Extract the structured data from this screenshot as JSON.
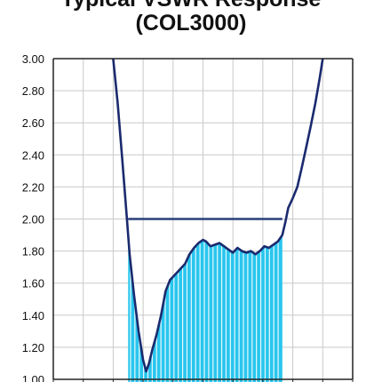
{
  "chart_data": {
    "type": "line",
    "title_lines": [
      "Typical VSWR Response",
      "(COL3000)"
    ],
    "ylim": [
      1.0,
      3.0
    ],
    "y_ticks": [
      "3.00",
      "2.80",
      "2.60",
      "2.40",
      "2.20",
      "2.00",
      "1.80",
      "1.60",
      "1.40",
      "1.20",
      "1.00"
    ],
    "y_tick_values": [
      3.0,
      2.8,
      2.6,
      2.4,
      2.2,
      2.0,
      1.8,
      1.6,
      1.4,
      1.2,
      1.0
    ],
    "xlim": [
      0,
      10
    ],
    "x_grid_count": 10,
    "grid": true,
    "threshold": {
      "value": 2.0,
      "x_start": 2.5,
      "x_end": 7.65
    },
    "fill_range": {
      "x_start": 2.5,
      "x_end": 7.65
    },
    "series": [
      {
        "x": [
          2.0,
          2.15,
          2.3,
          2.45,
          2.55,
          2.7,
          2.85,
          3.0,
          3.1,
          3.2,
          3.3,
          3.45,
          3.6,
          3.75,
          3.9,
          4.0,
          4.1,
          4.25,
          4.4,
          4.55,
          4.7,
          4.85,
          5.0,
          5.1,
          5.25,
          5.4,
          5.55,
          5.7,
          5.85,
          6.0,
          6.15,
          6.3,
          6.45,
          6.6,
          6.75,
          6.9,
          7.05,
          7.2,
          7.35,
          7.5,
          7.65,
          7.75,
          7.85,
          8.0,
          8.15,
          8.3,
          8.45,
          8.6,
          8.75,
          8.9,
          9.0
        ],
        "y": [
          3.0,
          2.72,
          2.38,
          2.02,
          1.78,
          1.52,
          1.3,
          1.12,
          1.05,
          1.1,
          1.18,
          1.28,
          1.4,
          1.55,
          1.62,
          1.64,
          1.66,
          1.69,
          1.72,
          1.78,
          1.82,
          1.85,
          1.87,
          1.86,
          1.83,
          1.84,
          1.85,
          1.83,
          1.81,
          1.79,
          1.82,
          1.8,
          1.79,
          1.8,
          1.78,
          1.8,
          1.83,
          1.82,
          1.84,
          1.86,
          1.9,
          1.98,
          2.07,
          2.13,
          2.2,
          2.32,
          2.45,
          2.58,
          2.72,
          2.88,
          3.0
        ]
      }
    ],
    "colors": {
      "curve": "#1a2a6e",
      "threshold": "#2a3f7a",
      "fill": "#29c6ee",
      "fill_stripe": "#e6f8fd",
      "grid": "#c9c9c9",
      "frame": "#222222"
    }
  }
}
